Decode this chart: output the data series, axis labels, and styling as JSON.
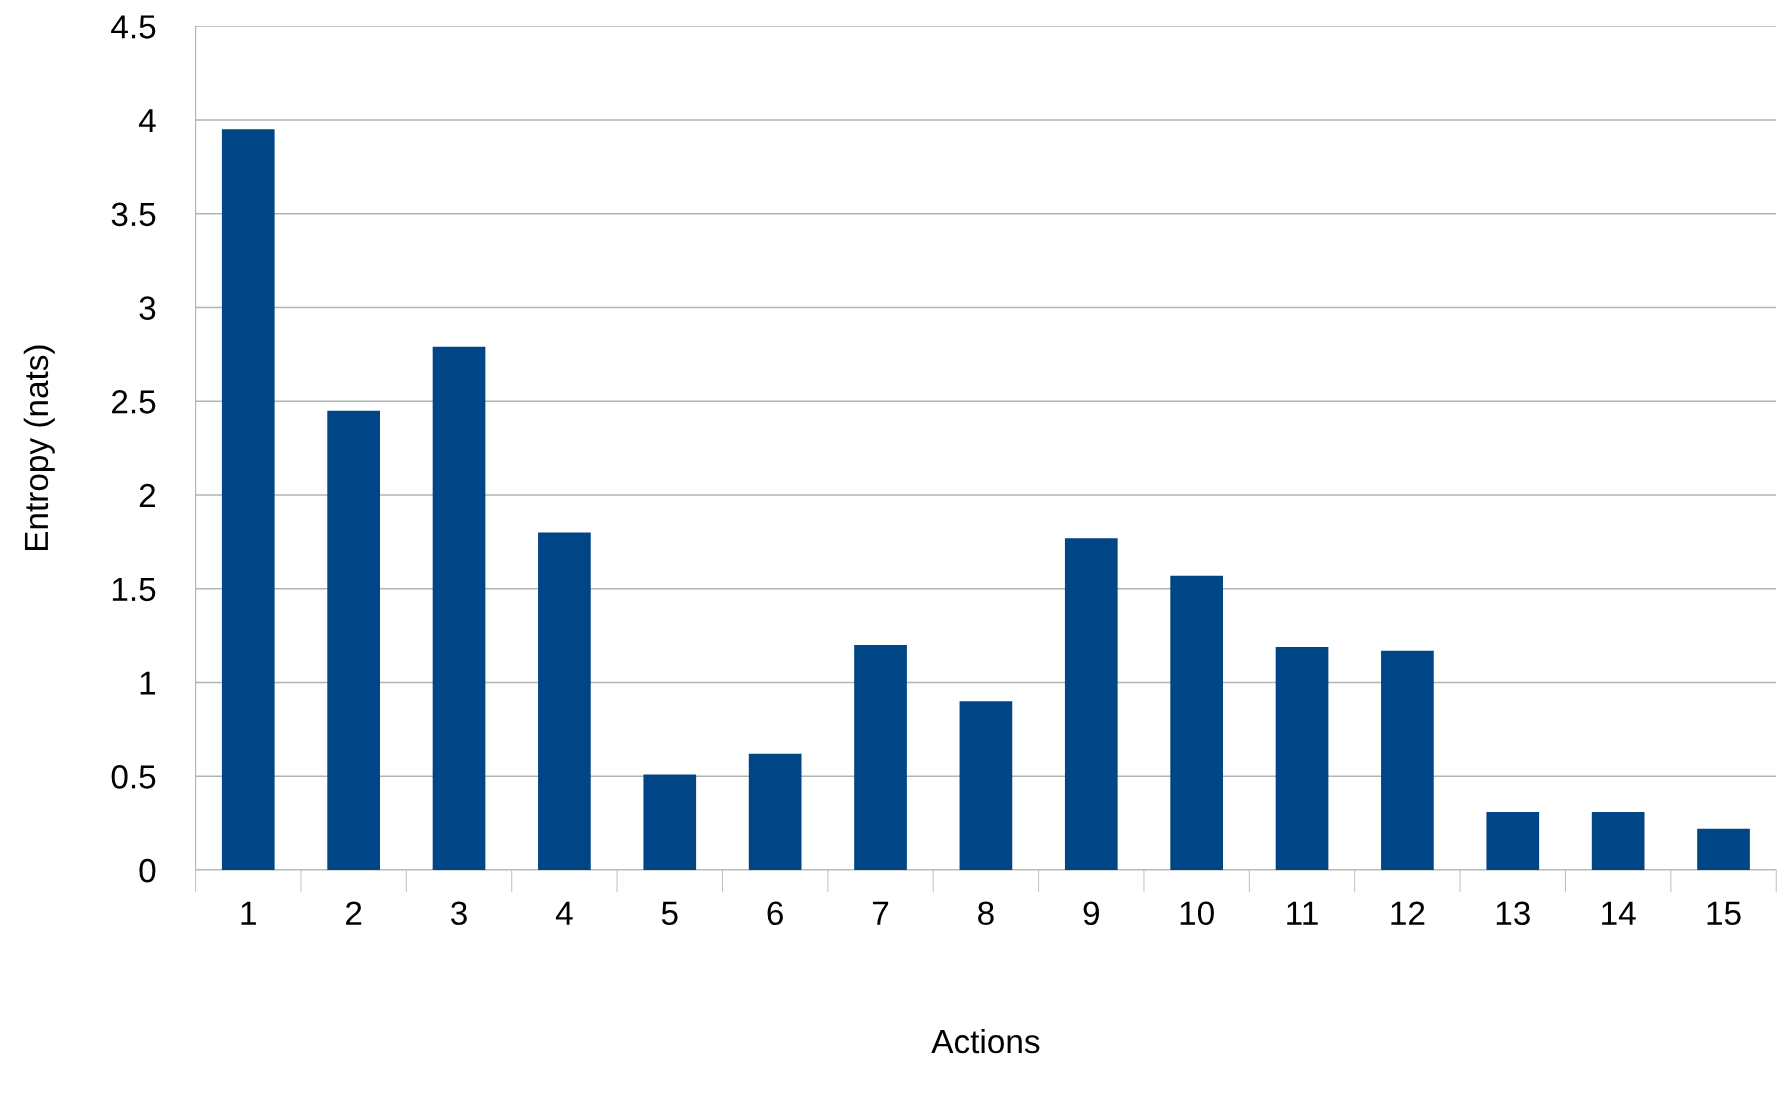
{
  "chart_data": {
    "type": "bar",
    "xlabel": "Actions",
    "ylabel": "Entropy (nats)",
    "categories": [
      "1",
      "2",
      "3",
      "4",
      "5",
      "6",
      "7",
      "8",
      "9",
      "10",
      "11",
      "12",
      "13",
      "14",
      "15"
    ],
    "values": [
      3.95,
      2.45,
      2.79,
      1.8,
      0.51,
      0.62,
      1.2,
      0.9,
      1.77,
      1.57,
      1.19,
      1.17,
      0.31,
      0.31,
      0.22
    ],
    "color": "#004586",
    "ylim": [
      0,
      4.5
    ],
    "yticks": [
      0,
      {
        "value": 0.5,
        "label": "0.5"
      },
      1,
      {
        "value": 1.5,
        "label": "1.5"
      },
      2,
      {
        "value": 2.5,
        "label": "2.5"
      },
      3,
      {
        "value": 3.5,
        "label": "3.5"
      },
      4,
      {
        "value": 4.5,
        "label": "4.5"
      }
    ],
    "grid": "y",
    "legend": false
  }
}
